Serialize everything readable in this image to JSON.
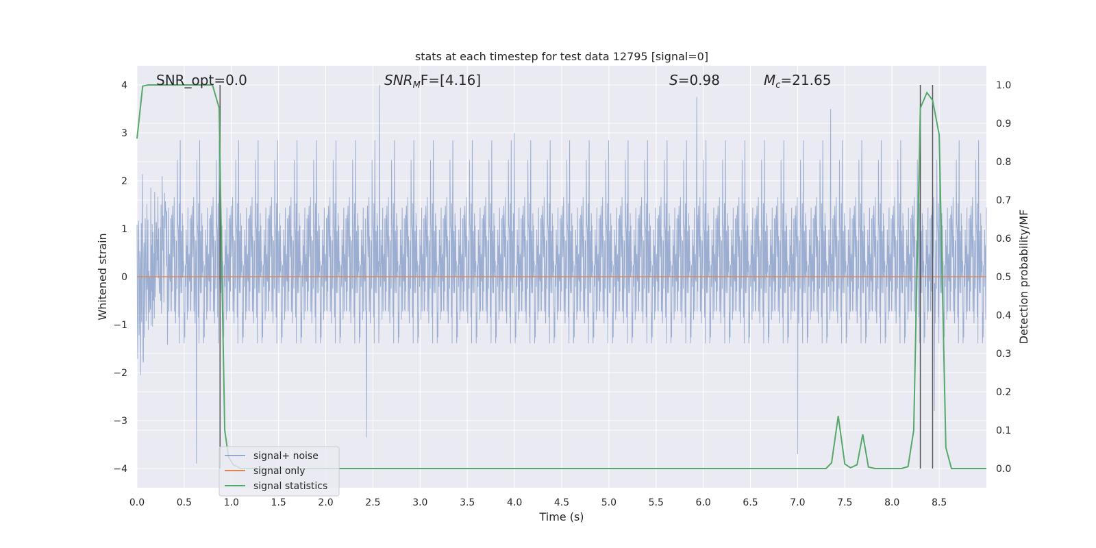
{
  "chart_data": {
    "type": "line",
    "title": "stats at each timestep for test data 12795 [signal=0]",
    "xlabel": "Time (s)",
    "ylabel": "Whitened strain",
    "y2label": "Detection probability/MF",
    "xlim": [
      0,
      9.0
    ],
    "ylim": [
      -4.4,
      4.4
    ],
    "y2lim": [
      -0.05,
      1.05
    ],
    "xticks": [
      "0.0",
      "0.5",
      "1.0",
      "1.5",
      "2.0",
      "2.5",
      "3.0",
      "3.5",
      "4.0",
      "4.5",
      "5.0",
      "5.5",
      "6.0",
      "6.5",
      "7.0",
      "7.5",
      "8.0",
      "8.5"
    ],
    "yticks": [
      "4",
      "3",
      "2",
      "1",
      "0",
      "−1",
      "−2",
      "−3",
      "−4"
    ],
    "y2ticks": [
      "1.0",
      "0.9",
      "0.8",
      "0.7",
      "0.6",
      "0.5",
      "0.4",
      "0.3",
      "0.2",
      "0.1",
      "0.0"
    ],
    "grid": true,
    "legend_position": "lower-left",
    "annotations": {
      "snr_opt": "SNR_opt=0.0",
      "snr_mf_sym": "SNR",
      "snr_mf_sub": "M",
      "snr_mf_rest": "F=[4.16]",
      "s_sym": "S",
      "s_val": "=0.98",
      "mc_sym": "M",
      "mc_sub": "c",
      "mc_val": "=21.65"
    },
    "vertical_lines_x": [
      0.88,
      8.3,
      8.43
    ],
    "series": [
      {
        "name": "signal+ noise",
        "color": "#4c72b0",
        "description_envelope": {
          "upper_typical": 2.0,
          "lower_typical": -1.9,
          "max": 4.0,
          "min": -3.9,
          "peaks": [
            [
              0.63,
              -3.9
            ],
            [
              2.57,
              4.0
            ],
            [
              2.43,
              -3.35
            ],
            [
              4.0,
              3.0
            ],
            [
              5.93,
              3.75
            ],
            [
              7.35,
              3.5
            ],
            [
              8.45,
              3.75
            ],
            [
              8.45,
              -2.8
            ],
            [
              7.0,
              -3.7
            ]
          ]
        }
      },
      {
        "name": "signal only",
        "color": "#dd8452",
        "y": 0
      },
      {
        "name": "signal statistics",
        "color": "#55a868",
        "axis": "right",
        "x": [
          0.0,
          0.06,
          0.12,
          0.2,
          0.3,
          0.4,
          0.5,
          0.6,
          0.7,
          0.8,
          0.87,
          0.9,
          0.93,
          0.97,
          1.02,
          1.1,
          1.3,
          1.6,
          2.0,
          3.0,
          4.0,
          5.0,
          6.0,
          7.0,
          7.3,
          7.36,
          7.43,
          7.5,
          7.56,
          7.63,
          7.69,
          7.75,
          7.82,
          7.9,
          8.1,
          8.17,
          8.23,
          8.3,
          8.37,
          8.43,
          8.5,
          8.57,
          8.63,
          9.0
        ],
        "y": [
          0.86,
          0.997,
          1.0,
          1.0,
          1.0,
          1.0,
          1.0,
          1.0,
          1.0,
          1.0,
          0.94,
          0.5,
          0.1,
          0.03,
          0.01,
          0.0,
          0.0,
          0.0,
          0.0,
          0.0,
          0.0,
          0.0,
          0.0,
          0.0,
          0.0,
          0.015,
          0.137,
          0.012,
          0.002,
          0.01,
          0.089,
          0.004,
          0.0,
          0.0,
          0.0,
          0.005,
          0.1,
          0.94,
          0.98,
          0.96,
          0.87,
          0.055,
          0.0,
          0.0
        ]
      }
    ]
  }
}
